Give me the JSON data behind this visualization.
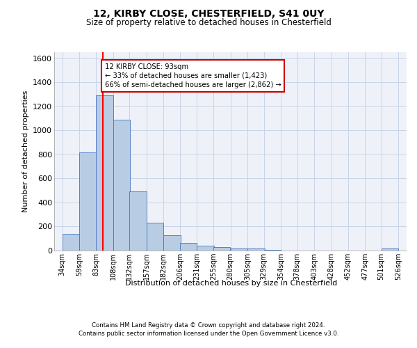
{
  "title1": "12, KIRBY CLOSE, CHESTERFIELD, S41 0UY",
  "title2": "Size of property relative to detached houses in Chesterfield",
  "xlabel": "Distribution of detached houses by size in Chesterfield",
  "ylabel": "Number of detached properties",
  "footnote1": "Contains HM Land Registry data © Crown copyright and database right 2024.",
  "footnote2": "Contains public sector information licensed under the Open Government Licence v3.0.",
  "bar_left_edges": [
    34,
    59,
    83,
    108,
    132,
    157,
    182,
    206,
    231,
    255,
    280,
    305,
    329,
    354,
    378,
    403,
    428,
    452,
    477,
    501
  ],
  "bar_heights": [
    140,
    815,
    1290,
    1090,
    490,
    230,
    130,
    65,
    40,
    27,
    20,
    15,
    5,
    0,
    0,
    0,
    0,
    0,
    0,
    15
  ],
  "bin_width": 25,
  "bar_color": "#b8cce4",
  "bar_edge_color": "#4472c4",
  "grid_color": "#c8d4e8",
  "bg_color": "#eef2f8",
  "property_size": 93,
  "red_line_color": "#ff0000",
  "annotation_text": "12 KIRBY CLOSE: 93sqm\n← 33% of detached houses are smaller (1,423)\n66% of semi-detached houses are larger (2,862) →",
  "annotation_box_color": "#cc0000",
  "ylim": [
    0,
    1650
  ],
  "yticks": [
    0,
    200,
    400,
    600,
    800,
    1000,
    1200,
    1400,
    1600
  ],
  "tick_labels": [
    "34sqm",
    "59sqm",
    "83sqm",
    "108sqm",
    "132sqm",
    "157sqm",
    "182sqm",
    "206sqm",
    "231sqm",
    "255sqm",
    "280sqm",
    "305sqm",
    "329sqm",
    "354sqm",
    "378sqm",
    "403sqm",
    "428sqm",
    "452sqm",
    "477sqm",
    "501sqm",
    "526sqm"
  ],
  "xlim_left": 22,
  "xlim_right": 538
}
